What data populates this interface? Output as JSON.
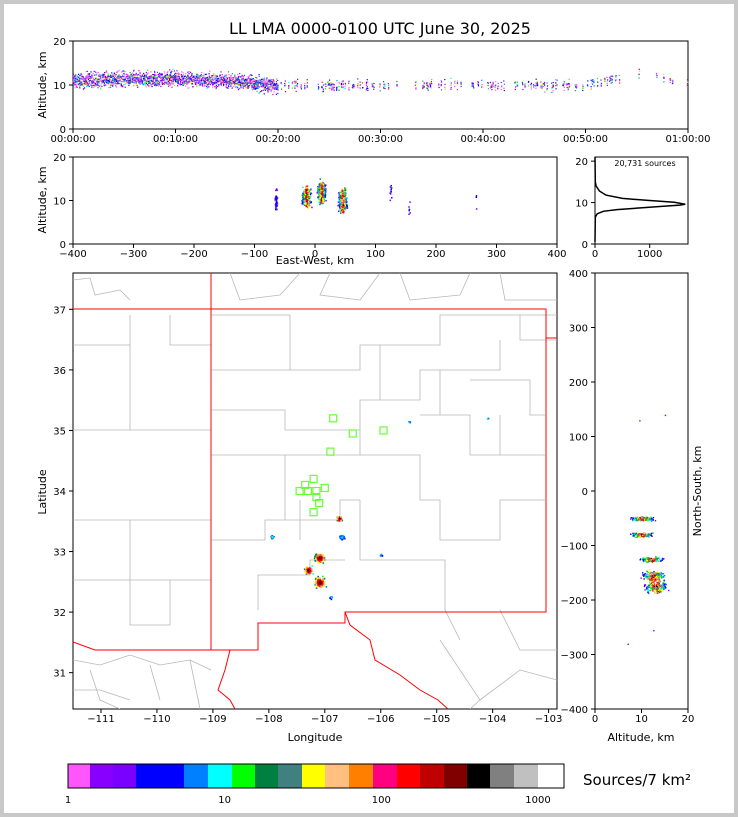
{
  "title": "LL LMA 0000-0100 UTC June 30, 2025",
  "chart_data": [
    {
      "id": "time_height",
      "type": "scatter",
      "ylabel": "Altitude, km",
      "xlim": [
        "00:00:00",
        "01:00:00"
      ],
      "ylim": [
        0,
        20
      ],
      "xticks": [
        "00:00:00",
        "00:10:00",
        "00:20:00",
        "00:30:00",
        "00:40:00",
        "00:50:00",
        "01:00:00"
      ],
      "yticks": [
        "0",
        "10",
        "20"
      ],
      "x": [
        "00:00",
        "00:05",
        "00:10",
        "00:15",
        "00:20",
        "00:25",
        "00:30",
        "00:35",
        "00:40",
        "00:45",
        "00:50",
        "00:55",
        "01:00"
      ],
      "y": [
        11,
        11.5,
        11.5,
        11,
        10,
        10,
        10,
        10,
        10,
        10,
        10,
        13,
        10
      ]
    },
    {
      "id": "ew_height",
      "type": "scatter",
      "xlabel": "East-West, km",
      "ylabel": "Altitude, km",
      "xlim": [
        -400,
        400
      ],
      "ylim": [
        0,
        20
      ],
      "xticks": [
        "−400",
        "−300",
        "−200",
        "−100",
        "0",
        "100",
        "200",
        "300",
        "400"
      ],
      "yticks": [
        "0",
        "10",
        "20"
      ],
      "x": [
        -65,
        -15,
        10,
        45,
        125,
        155,
        265
      ],
      "y": [
        10,
        11,
        12,
        10,
        12,
        9,
        10
      ]
    },
    {
      "id": "altitude_histogram",
      "type": "line",
      "annotation": "20,731 sources",
      "xlim": [
        0,
        1700
      ],
      "ylim": [
        0,
        21
      ],
      "xticks": [
        "0",
        "1000"
      ],
      "yticks": [
        "0",
        "10",
        "20"
      ],
      "points": [
        [
          0,
          0.5
        ],
        [
          5,
          6.5
        ],
        [
          40,
          7.3
        ],
        [
          150,
          7.9
        ],
        [
          400,
          8.3
        ],
        [
          800,
          8.7
        ],
        [
          1250,
          9.1
        ],
        [
          1550,
          9.4
        ],
        [
          1650,
          9.6
        ],
        [
          1450,
          10.1
        ],
        [
          1000,
          10.5
        ],
        [
          500,
          11
        ],
        [
          200,
          11.8
        ],
        [
          80,
          12.8
        ],
        [
          20,
          14
        ],
        [
          5,
          15
        ],
        [
          0,
          21
        ]
      ]
    },
    {
      "id": "plan_view",
      "type": "scatter",
      "xlabel": "Longitude",
      "ylabel": "Latitude",
      "xlim": [
        -111.5,
        -102.85
      ],
      "ylim": [
        30.4,
        37.6
      ],
      "xticks": [
        "−111",
        "−110",
        "−109",
        "−108",
        "−107",
        "−106",
        "−105",
        "−104",
        "−103"
      ],
      "yticks": [
        "31",
        "32",
        "33",
        "34",
        "35",
        "36",
        "37"
      ],
      "source_clusters": [
        [
          -107.95,
          33.25
        ],
        [
          -107.1,
          32.9
        ],
        [
          -107.3,
          32.7
        ],
        [
          -107.1,
          32.5
        ],
        [
          -106.75,
          33.55
        ],
        [
          -106.7,
          33.25
        ],
        [
          -106.9,
          32.25
        ],
        [
          -106.0,
          32.95
        ],
        [
          -105.5,
          35.15
        ],
        [
          -104.1,
          35.2
        ]
      ],
      "stations": [
        [
          -107.2,
          34.2
        ],
        [
          -107.35,
          34.1
        ],
        [
          -107.45,
          34.0
        ],
        [
          -107.3,
          34.0
        ],
        [
          -107.15,
          34.0
        ],
        [
          -107.0,
          34.05
        ],
        [
          -107.15,
          33.9
        ],
        [
          -107.1,
          33.8
        ],
        [
          -107.2,
          33.65
        ],
        [
          -106.9,
          34.65
        ],
        [
          -106.85,
          35.2
        ],
        [
          -106.5,
          34.95
        ],
        [
          -105.95,
          35.0
        ]
      ]
    },
    {
      "id": "height_ns",
      "type": "scatter",
      "xlabel": "Altitude, km",
      "ylabel": "North-South, km",
      "xlim": [
        0,
        20
      ],
      "ylim": [
        -400,
        400
      ],
      "xticks": [
        "0",
        "10",
        "20"
      ],
      "yticks": [
        "−400",
        "−300",
        "−200",
        "−100",
        "0",
        "100",
        "200",
        "300",
        "400"
      ],
      "x": [
        10,
        10,
        12,
        12.5,
        13
      ],
      "y": [
        -50,
        -80,
        -125,
        -155,
        -175
      ]
    }
  ],
  "colorbar": {
    "label": "Sources/7 km²",
    "ticks": [
      "1",
      "10",
      "100",
      "1000"
    ],
    "colors": [
      "#ff55ff",
      "#8800ff",
      "#7a00ff",
      "#0000ff",
      "#0000ff",
      "#0080ff",
      "#00ffff",
      "#00ff00",
      "#008040",
      "#408080",
      "#ffff00",
      "#ffc080",
      "#ff8000",
      "#ff0080",
      "#ff0000",
      "#c00000",
      "#800000",
      "#000000",
      "#808080",
      "#c0c0c0",
      "#ffffff"
    ]
  },
  "colors": {
    "state_border": "#ff0000",
    "county_border": "#b0b0b0",
    "station": "#66ff33",
    "histogram_line": "#000000"
  }
}
